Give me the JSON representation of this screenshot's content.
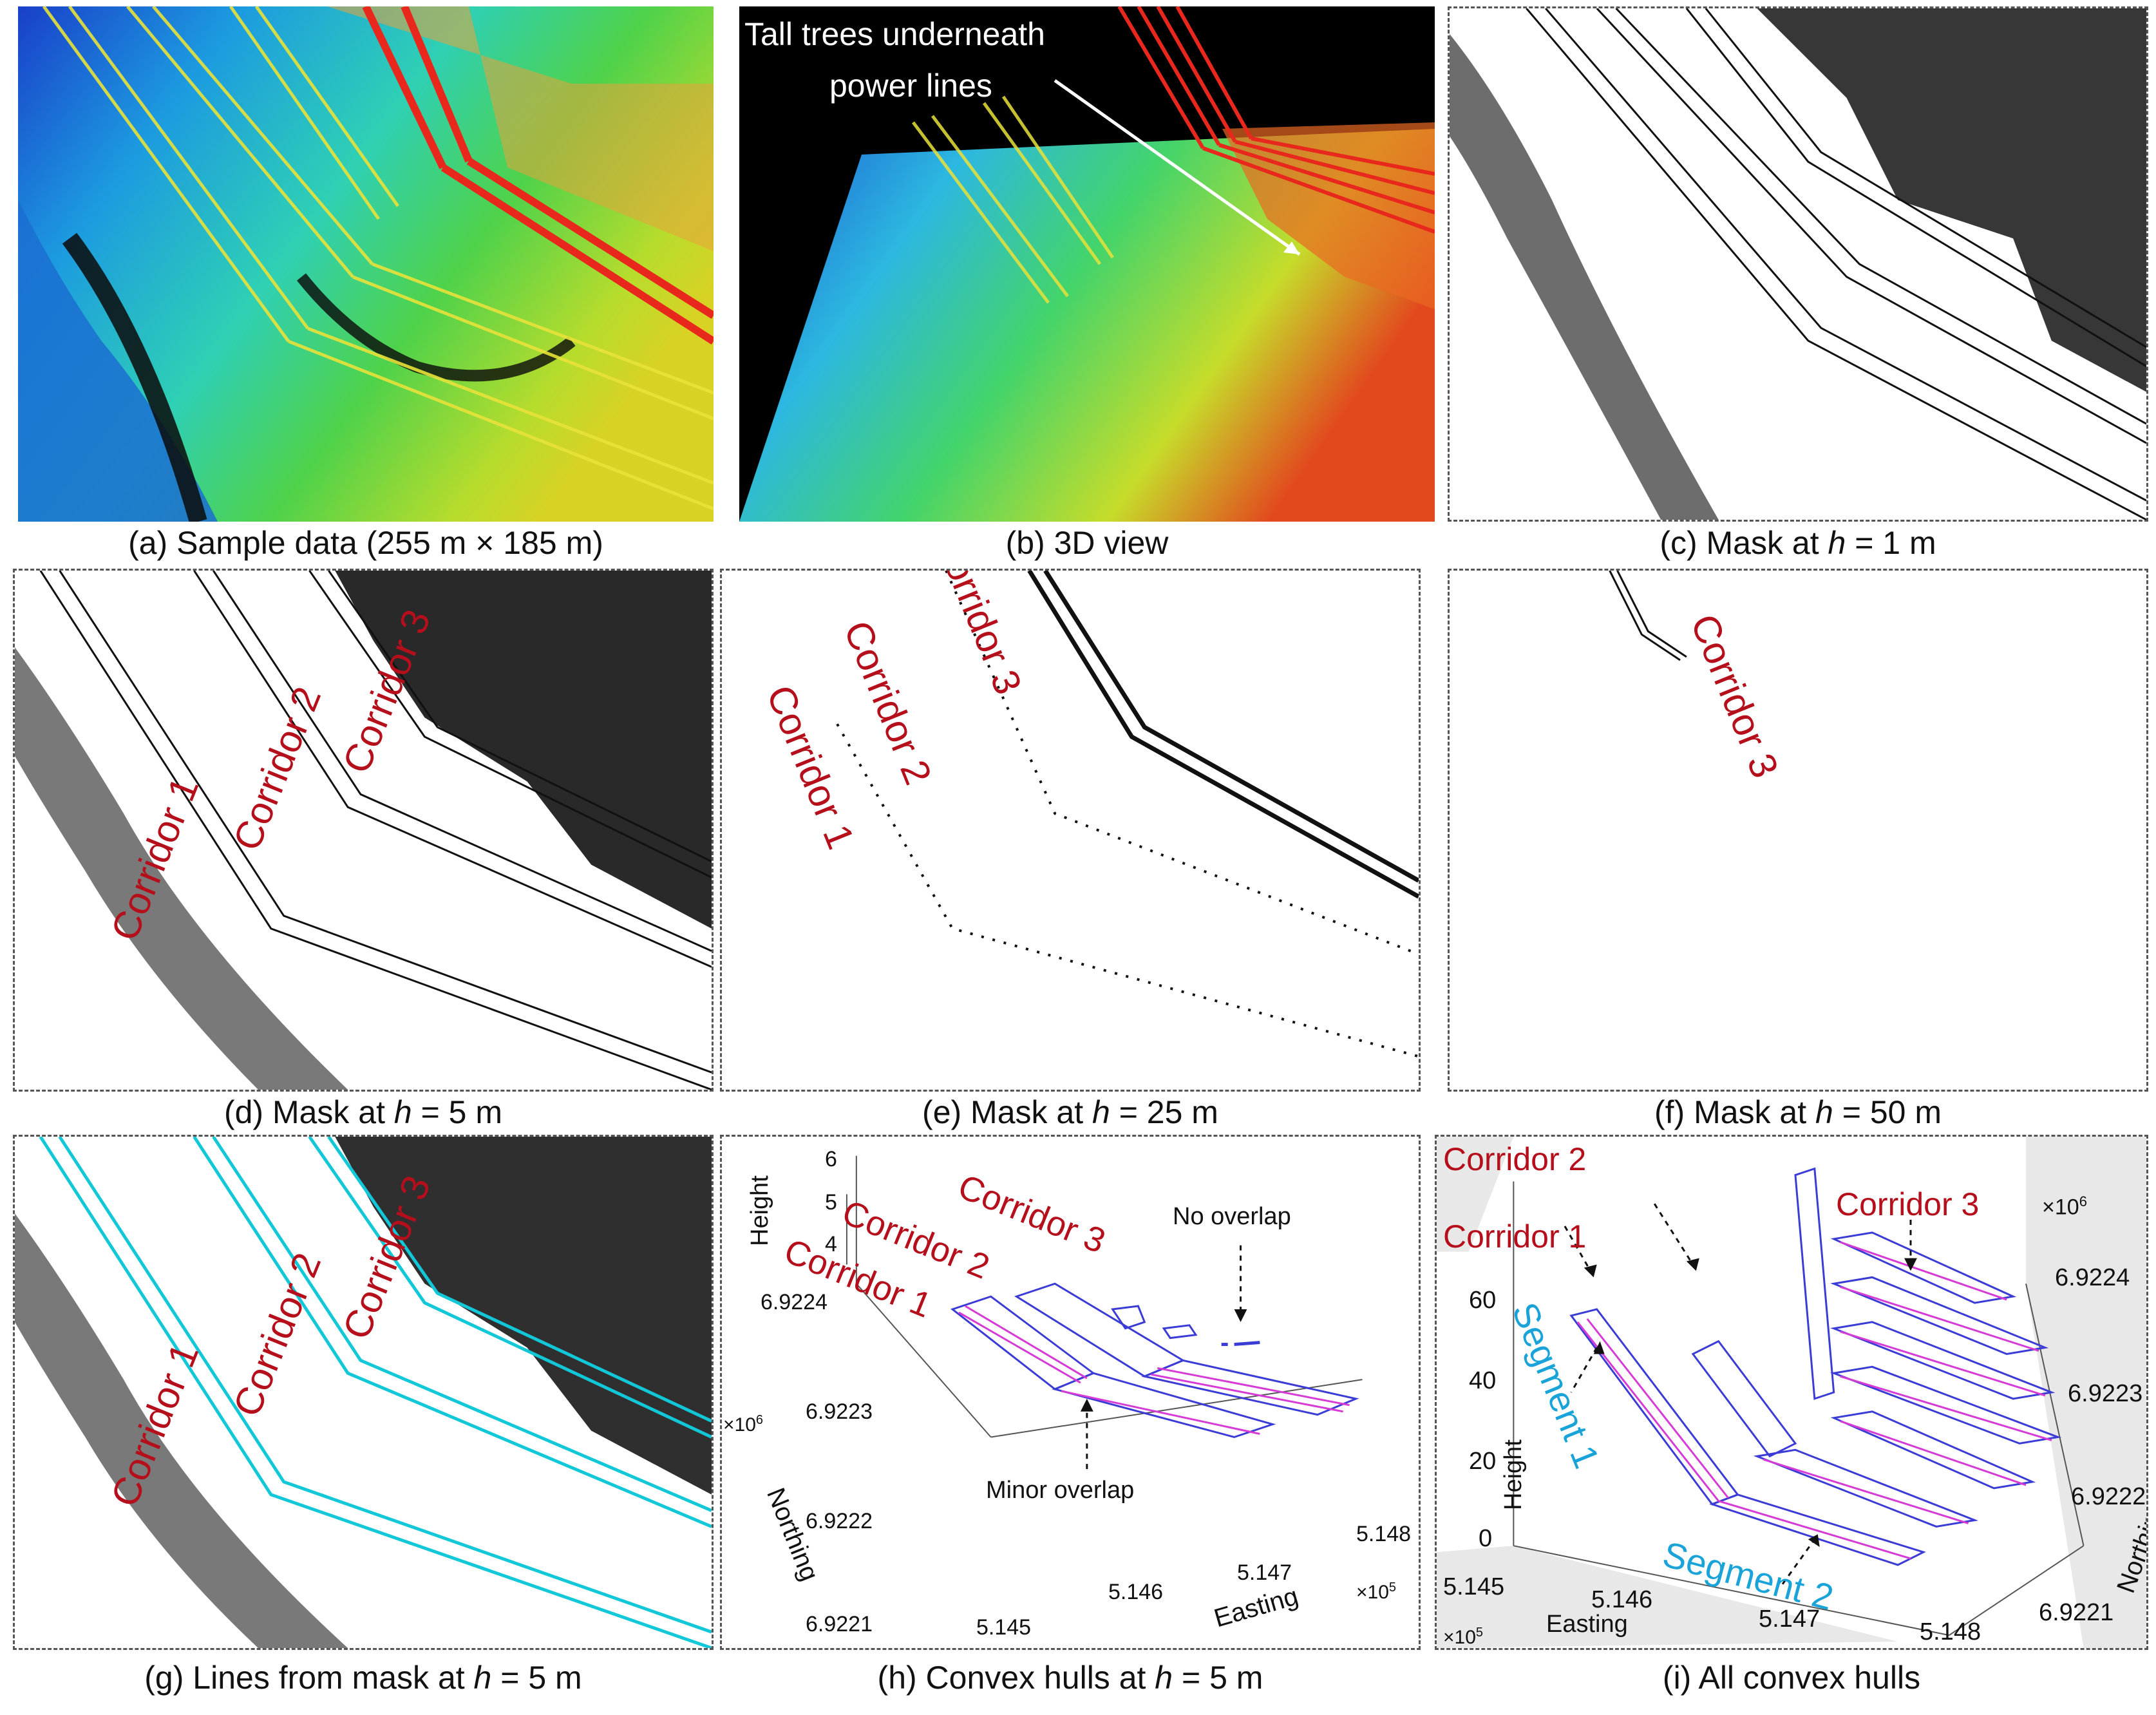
{
  "captions": {
    "a": "(a) Sample data (255 m × 185 m)",
    "b": "(b) 3D view",
    "c_pre": "(c) Mask at ",
    "c_var": "h",
    "c_post": " = 1 m",
    "d_pre": "(d) Mask at ",
    "d_var": "h",
    "d_post": " = 5 m",
    "e_pre": "(e) Mask at ",
    "e_var": "h",
    "e_post": " = 25 m",
    "f_pre": "(f) Mask at ",
    "f_var": "h",
    "f_post": " = 50 m",
    "g_pre": "(g) Lines from mask at ",
    "g_var": "h",
    "g_post": " = 5 m",
    "h_pre": "(h) Convex hulls at ",
    "h_var": "h",
    "h_post": " = 5 m",
    "i": "(i) All convex hulls"
  },
  "panel_b": {
    "annotation_line1": "Tall trees underneath",
    "annotation_line2": "power lines"
  },
  "corridors": {
    "c1": "Corridor 1",
    "c2": "Corridor 2",
    "c3": "Corridor 3"
  },
  "panel_h": {
    "no_overlap": "No overlap",
    "minor_overlap": "Minor overlap",
    "height_label": "Height",
    "northing_label": "Northing",
    "easting_label": "Easting",
    "height_ticks": [
      "6",
      "5",
      "4"
    ],
    "northing_ticks": [
      "6.9224",
      "6.9223",
      "6.9222",
      "6.9221"
    ],
    "easting_ticks": [
      "5.145",
      "5.146",
      "5.147",
      "5.148"
    ],
    "northing_exp": "×10",
    "northing_exp_power": "6",
    "easting_exp": "×10",
    "easting_exp_power": "5"
  },
  "panel_i": {
    "segment1": "Segment 1",
    "segment2": "Segment 2",
    "height_label": "Height",
    "northing_label": "Northing",
    "easting_label": "Easting",
    "height_ticks": [
      "60",
      "40",
      "20",
      "0"
    ],
    "northing_ticks": [
      "6.9224",
      "6.9223",
      "6.9222",
      "6.9221"
    ],
    "easting_ticks": [
      "5.145",
      "5.146",
      "5.147",
      "5.148"
    ],
    "northing_exp": "×10",
    "northing_exp_power": "6",
    "easting_exp": "×10",
    "easting_exp_power": "5"
  },
  "colors": {
    "corridor_red": "#b50f1c",
    "segment_cyan": "#1aa3d9",
    "hull_blue": "#3b3bd6",
    "hull_magenta": "#d63bd6",
    "mask_cyan": "#12c8d8"
  }
}
